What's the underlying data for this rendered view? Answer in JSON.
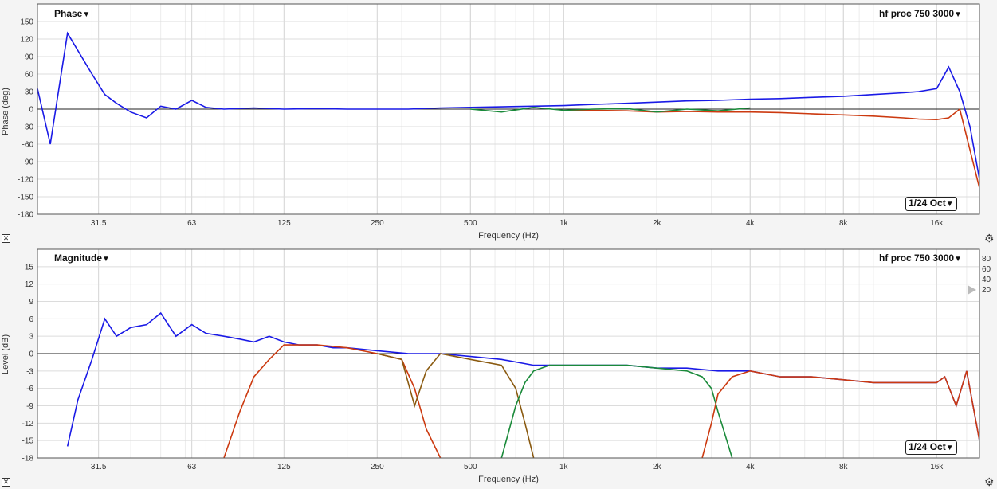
{
  "phase": {
    "title": "Phase",
    "measurement": "hf proc 750 3000",
    "resolution": "1/24 Oct",
    "ylabel": "Phase (deg)",
    "xlabel": "Frequency (Hz)"
  },
  "magnitude": {
    "title": "Magnitude",
    "measurement": "hf proc 750 3000",
    "resolution": "1/24 Oct",
    "ylabel": "Level (dB)",
    "xlabel": "Frequency (Hz)",
    "side_scale": [
      "80",
      "60",
      "40",
      "20"
    ]
  },
  "icons": {
    "close": "close-icon",
    "settings": "gear-icon",
    "dropdown": "chevron-down-icon"
  },
  "chart_data": [
    {
      "type": "line",
      "name": "phase",
      "xscale": "log",
      "xlim": [
        20,
        22000
      ],
      "ylim": [
        -180,
        180
      ],
      "x_ticks": [
        31.5,
        63,
        125,
        250,
        500,
        1000,
        2000,
        4000,
        8000,
        16000
      ],
      "x_tick_labels": [
        "31.5",
        "63",
        "125",
        "250",
        "500",
        "1k",
        "2k",
        "4k",
        "8k",
        "16k"
      ],
      "y_ticks": [
        150,
        120,
        90,
        60,
        30,
        0,
        -30,
        -60,
        -90,
        -120,
        -150,
        -180
      ],
      "grid": true,
      "series": [
        {
          "color": "#1a1ae6",
          "x": [
            20,
            22,
            25,
            30,
            33,
            36,
            40,
            45,
            50,
            56,
            63,
            70,
            80,
            100,
            125,
            160,
            200,
            250,
            315,
            400,
            500,
            630,
            800,
            1000,
            1250,
            1600,
            2000,
            2500,
            3150,
            4000,
            5000,
            6300,
            8000,
            10000,
            12500,
            14000,
            16000,
            17500,
            19000,
            20500,
            22000
          ],
          "y": [
            35,
            -60,
            130,
            60,
            25,
            10,
            -5,
            -15,
            5,
            0,
            15,
            3,
            0,
            2,
            0,
            1,
            0,
            0,
            0,
            2,
            3,
            4,
            5,
            6,
            8,
            10,
            12,
            14,
            15,
            17,
            18,
            20,
            22,
            25,
            28,
            30,
            35,
            72,
            30,
            -30,
            -120
          ]
        },
        {
          "color": "#cc3a10",
          "x": [
            1000,
            1250,
            1600,
            2000,
            2500,
            3150,
            4000,
            5000,
            6300,
            8000,
            10000,
            12500,
            14000,
            16000,
            17500,
            19000,
            20500,
            22000
          ],
          "y": [
            -3,
            -2,
            -3,
            -5,
            -4,
            -5,
            -5,
            -6,
            -8,
            -10,
            -12,
            -15,
            -17,
            -18,
            -15,
            0,
            -70,
            -135
          ]
        },
        {
          "color": "#1a8a3a",
          "x": [
            500,
            630,
            800,
            1000,
            1250,
            1600,
            2000,
            2500,
            3150,
            4000
          ],
          "y": [
            0,
            -5,
            3,
            -2,
            0,
            1,
            -5,
            0,
            -3,
            2
          ]
        }
      ]
    },
    {
      "type": "line",
      "name": "magnitude",
      "xscale": "log",
      "xlim": [
        20,
        22000
      ],
      "ylim": [
        -18,
        18
      ],
      "x_ticks": [
        31.5,
        63,
        125,
        250,
        500,
        1000,
        2000,
        4000,
        8000,
        16000
      ],
      "x_tick_labels": [
        "31.5",
        "63",
        "125",
        "250",
        "500",
        "1k",
        "2k",
        "4k",
        "8k",
        "16k"
      ],
      "y_ticks": [
        15,
        12,
        9,
        6,
        3,
        0,
        -3,
        -6,
        -9,
        -12,
        -15,
        -18
      ],
      "grid": true,
      "series": [
        {
          "color": "#1a1ae6",
          "x": [
            25,
            27,
            30,
            33,
            36,
            40,
            45,
            50,
            56,
            63,
            70,
            80,
            90,
            100,
            112,
            125,
            140,
            160,
            180,
            200,
            250,
            315,
            400,
            500,
            630,
            800,
            1000,
            1250,
            1600,
            2000,
            2500,
            3150,
            4000,
            5000,
            6300,
            8000,
            10000,
            12500,
            14000,
            16000,
            17000,
            18500,
            20000,
            22000
          ],
          "y": [
            -16,
            -8,
            -1,
            6,
            3,
            4.5,
            5,
            7,
            3,
            5,
            3.5,
            3,
            2.5,
            2,
            3,
            2,
            1.5,
            1.5,
            1,
            1,
            0.5,
            0,
            0,
            -0.5,
            -1,
            -2,
            -2,
            -2,
            -2,
            -2.5,
            -2.5,
            -3,
            -3,
            -4,
            -4,
            -4.5,
            -5,
            -5,
            -5,
            -5,
            -4,
            -9,
            -3,
            -15
          ]
        },
        {
          "color": "#cc3a10",
          "x": [
            80,
            90,
            100,
            112,
            125,
            160,
            200,
            250,
            300,
            330,
            360,
            400
          ],
          "y": [
            -18,
            -10,
            -4,
            -1,
            1.5,
            1.5,
            1,
            0,
            -1,
            -6,
            -13,
            -18
          ]
        },
        {
          "color": "#8a5a10",
          "x": [
            250,
            300,
            330,
            360,
            400,
            500,
            630,
            700,
            750,
            800
          ],
          "y": [
            0,
            -1,
            -9,
            -3,
            0,
            -1,
            -2,
            -6,
            -12,
            -18
          ]
        },
        {
          "color": "#1a8a3a",
          "x": [
            630,
            700,
            750,
            800,
            900,
            1000,
            1250,
            1600,
            2000,
            2500,
            2800,
            3000,
            3150,
            3500
          ],
          "y": [
            -18,
            -9,
            -5,
            -3,
            -2,
            -2,
            -2,
            -2,
            -2.5,
            -3,
            -4,
            -6,
            -10,
            -18
          ]
        },
        {
          "color": "#cc3a10",
          "x": [
            2800,
            3000,
            3150,
            3500,
            4000,
            5000,
            6300,
            8000,
            10000,
            12500,
            14000,
            16000,
            17000,
            18500,
            20000,
            22000
          ],
          "y": [
            -18,
            -12,
            -7,
            -4,
            -3,
            -4,
            -4,
            -4.5,
            -5,
            -5,
            -5,
            -5,
            -4,
            -9,
            -3,
            -15
          ]
        }
      ]
    }
  ]
}
